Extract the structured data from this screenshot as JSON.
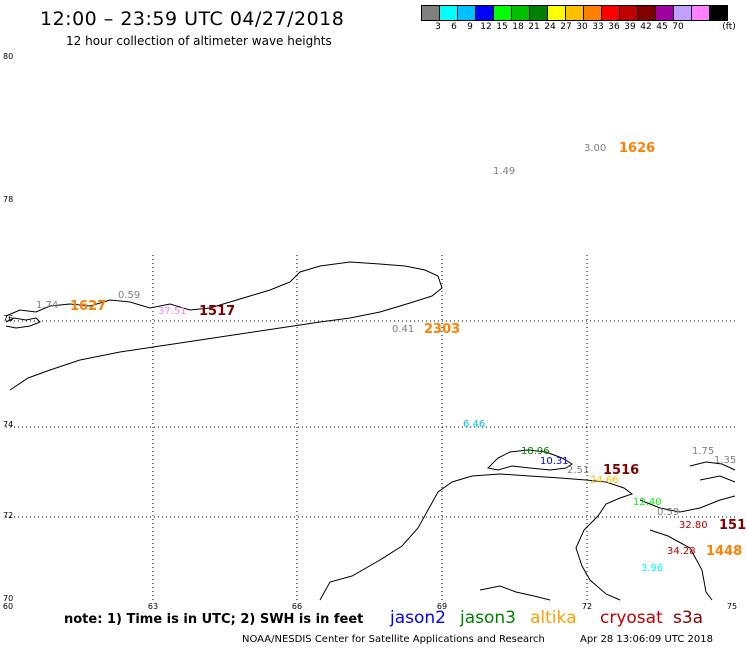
{
  "header": {
    "title": "12:00 – 23:59 UTC 04/27/2018",
    "subtitle": "12 hour collection of altimeter wave heights"
  },
  "legend": {
    "unit": "(ft)",
    "colors": [
      "#808080",
      "#00ffff",
      "#00c0ff",
      "#0000ff",
      "#00ff00",
      "#00c000",
      "#008000",
      "#ffff00",
      "#ffc000",
      "#ff8000",
      "#ff0000",
      "#c00000",
      "#800000",
      "#a000a0",
      "#c0a0ff",
      "#ff80ff",
      "#000000"
    ],
    "labels": [
      "3",
      "6",
      "9",
      "12",
      "15",
      "18",
      "21",
      "24",
      "27",
      "30",
      "33",
      "36",
      "39",
      "42",
      "45",
      "70"
    ]
  },
  "axes": {
    "lat_labels": [
      "80",
      "78",
      "76",
      "74",
      "72",
      "70"
    ],
    "lon_labels": [
      "60",
      "63",
      "66",
      "69",
      "72",
      "75"
    ]
  },
  "observations": [
    {
      "text": "3.00",
      "color": "#808080"
    },
    {
      "text": "1626",
      "color": "#ff8000"
    },
    {
      "text": "1.49",
      "color": "#808080"
    },
    {
      "text": "1.74",
      "color": "#808080"
    },
    {
      "text": "1627",
      "color": "#ff8000"
    },
    {
      "text": "0.59",
      "color": "#808080"
    },
    {
      "text": "37.51",
      "color": "#ff80ff"
    },
    {
      "text": "1517",
      "color": "#800000"
    },
    {
      "text": "0.41",
      "color": "#808080"
    },
    {
      "text": "2303",
      "color": "#ff8000"
    },
    {
      "text": "6.46",
      "color": "#00c0ff"
    },
    {
      "text": "18.96",
      "color": "#008000"
    },
    {
      "text": "10.31",
      "color": "#0000ff"
    },
    {
      "text": "2.51",
      "color": "#808080"
    },
    {
      "text": "1516",
      "color": "#800000"
    },
    {
      "text": "24.66",
      "color": "#ffc000"
    },
    {
      "text": "1.75",
      "color": "#808080"
    },
    {
      "text": "1.35",
      "color": "#808080"
    },
    {
      "text": "12.40",
      "color": "#00ff00"
    },
    {
      "text": "0.59",
      "color": "#808080"
    },
    {
      "text": "32.80",
      "color": "#c00000"
    },
    {
      "text": "151",
      "color": "#800000"
    },
    {
      "text": "34.28",
      "color": "#c00000"
    },
    {
      "text": "1448",
      "color": "#ff8000"
    },
    {
      "text": "3.96",
      "color": "#00ffff"
    }
  ],
  "footer": {
    "note": "note:  1) Time is in UTC;  2) SWH is in feet",
    "satellites": [
      {
        "name": "jason2",
        "color": "#0000ff"
      },
      {
        "name": "jason3",
        "color": "#008000"
      },
      {
        "name": "altika",
        "color": "#ffa000"
      },
      {
        "name": "cryosat",
        "color": "#c00000"
      },
      {
        "name": "s3a",
        "color": "#800000"
      }
    ],
    "credit": "NOAA/NESDIS Center for Satellite Applications and Research",
    "timestamp": "Apr 28 13:06:09 UTC 2018"
  }
}
